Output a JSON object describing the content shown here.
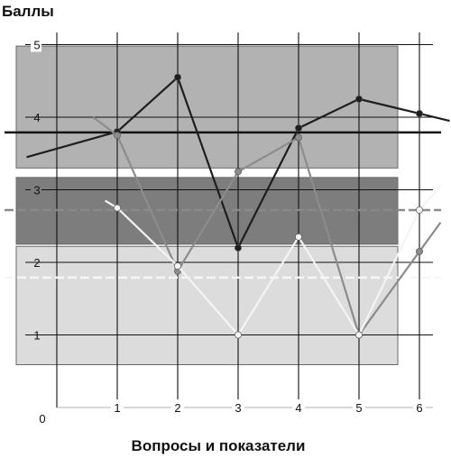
{
  "chart_data": {
    "type": "line",
    "ylabel": "Баллы",
    "xlabel": "Вопросы и показатели",
    "origin_label": "0",
    "x_ticks": [
      "1",
      "2",
      "3",
      "4",
      "5",
      "6"
    ],
    "y_ticks": [
      "1",
      "2",
      "3",
      "4",
      "5"
    ],
    "xlim": [
      0,
      6.5
    ],
    "ylim": [
      0,
      5.1
    ],
    "grid": true,
    "bands": [
      {
        "y_range": [
          3.3,
          4.98
        ],
        "color": "#b2b2b2"
      },
      {
        "y_range": [
          2.25,
          3.17
        ],
        "color": "#7d7d7d"
      },
      {
        "y_range": [
          0.59,
          2.22
        ],
        "color": "#dcdcdc"
      }
    ],
    "reference_lines": [
      {
        "y": 3.79,
        "color": "#111111",
        "width": 2.5,
        "dashed": false
      },
      {
        "y": 2.72,
        "color": "#8a8a8a",
        "width": 2.5,
        "dashed": true
      },
      {
        "y": 1.79,
        "color": "#f6f6f6",
        "width": 2.5,
        "dashed": true
      }
    ],
    "series": [
      {
        "color": "#1e1e1e",
        "x": [
          -0.5,
          1,
          2,
          3,
          4,
          5,
          6,
          6.5
        ],
        "y": [
          3.45,
          3.8,
          4.55,
          2.2,
          3.85,
          4.25,
          4.05,
          3.95
        ]
      },
      {
        "color": "#8c8c8c",
        "x": [
          0.6,
          1,
          2,
          3,
          4,
          5,
          6,
          6.35
        ],
        "y": [
          4.0,
          3.75,
          1.88,
          3.25,
          3.72,
          1.0,
          2.15,
          2.55
        ]
      },
      {
        "color": "#f4f4f4",
        "x": [
          0.8,
          1,
          2,
          3,
          4,
          5,
          6,
          6.35
        ],
        "y": [
          2.85,
          2.75,
          1.95,
          1.0,
          2.35,
          1.0,
          2.72,
          3.05
        ]
      }
    ],
    "colors": {
      "axis": "#111111",
      "grid": "#111111",
      "marker_outline": "#555555"
    }
  }
}
